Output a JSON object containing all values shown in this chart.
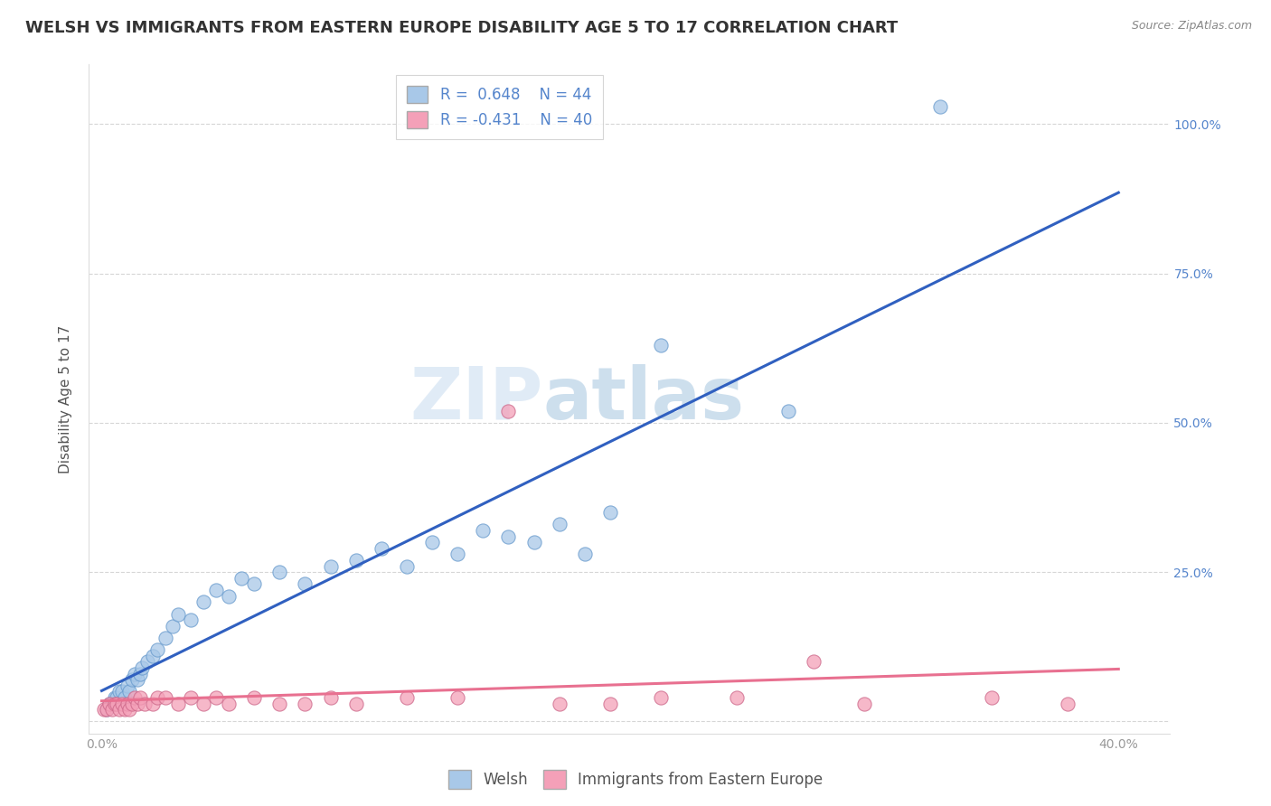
{
  "title": "WELSH VS IMMIGRANTS FROM EASTERN EUROPE DISABILITY AGE 5 TO 17 CORRELATION CHART",
  "source": "Source: ZipAtlas.com",
  "ylabel": "Disability Age 5 to 17",
  "x_ticks": [
    0.0,
    10.0,
    20.0,
    30.0,
    40.0
  ],
  "x_tick_labels": [
    "0.0%",
    "",
    "",
    "",
    "40.0%"
  ],
  "y_ticks": [
    0.0,
    25.0,
    50.0,
    75.0,
    100.0
  ],
  "y_tick_labels_left": [
    "",
    "",
    "",
    "",
    ""
  ],
  "y_tick_labels_right": [
    "",
    "25.0%",
    "50.0%",
    "75.0%",
    "100.0%"
  ],
  "xlim": [
    -0.5,
    42
  ],
  "ylim": [
    -2,
    110
  ],
  "welsh_color": "#A8C8E8",
  "eastern_color": "#F4A0B8",
  "welsh_R": 0.648,
  "welsh_N": 44,
  "eastern_R": -0.431,
  "eastern_N": 40,
  "legend_label_welsh": "Welsh",
  "legend_label_eastern": "Immigrants from Eastern Europe",
  "watermark_zip": "ZIP",
  "watermark_atlas": "atlas",
  "welsh_scatter_x": [
    0.2,
    0.3,
    0.4,
    0.5,
    0.6,
    0.7,
    0.8,
    0.9,
    1.0,
    1.1,
    1.2,
    1.3,
    1.4,
    1.5,
    1.6,
    1.8,
    2.0,
    2.2,
    2.5,
    2.8,
    3.0,
    3.5,
    4.0,
    4.5,
    5.0,
    5.5,
    6.0,
    7.0,
    8.0,
    9.0,
    10.0,
    11.0,
    12.0,
    13.0,
    14.0,
    15.0,
    16.0,
    17.0,
    18.0,
    19.0,
    20.0,
    22.0,
    27.0,
    33.0
  ],
  "welsh_scatter_y": [
    2,
    3,
    3,
    4,
    4,
    5,
    5,
    4,
    6,
    5,
    7,
    8,
    7,
    8,
    9,
    10,
    11,
    12,
    14,
    16,
    18,
    17,
    20,
    22,
    21,
    24,
    23,
    25,
    23,
    26,
    27,
    29,
    26,
    30,
    28,
    32,
    31,
    30,
    33,
    28,
    35,
    63,
    52,
    103
  ],
  "eastern_scatter_x": [
    0.1,
    0.2,
    0.3,
    0.4,
    0.5,
    0.6,
    0.7,
    0.8,
    0.9,
    1.0,
    1.1,
    1.2,
    1.3,
    1.4,
    1.5,
    1.7,
    2.0,
    2.2,
    2.5,
    3.0,
    3.5,
    4.0,
    4.5,
    5.0,
    6.0,
    7.0,
    8.0,
    9.0,
    10.0,
    12.0,
    14.0,
    16.0,
    18.0,
    20.0,
    22.0,
    25.0,
    28.0,
    30.0,
    35.0,
    38.0
  ],
  "eastern_scatter_y": [
    2,
    2,
    3,
    2,
    3,
    3,
    2,
    3,
    2,
    3,
    2,
    3,
    4,
    3,
    4,
    3,
    3,
    4,
    4,
    3,
    4,
    3,
    4,
    3,
    4,
    3,
    3,
    4,
    3,
    4,
    4,
    52,
    3,
    3,
    4,
    4,
    10,
    3,
    4,
    3
  ],
  "regression_line_color_welsh": "#3060C0",
  "regression_line_color_eastern": "#E87090",
  "background_color": "#FFFFFF",
  "grid_color": "#CCCCCC",
  "title_color": "#333333",
  "axis_label_color": "#555555",
  "tick_label_color": "#999999",
  "right_tick_color": "#5585CC",
  "title_fontsize": 13,
  "axis_label_fontsize": 11,
  "tick_fontsize": 10,
  "legend_fontsize": 12
}
